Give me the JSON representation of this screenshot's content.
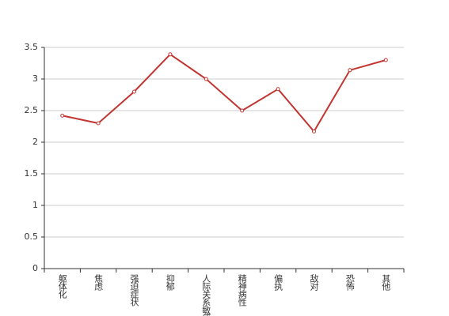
{
  "chart_data": {
    "type": "line",
    "categories": [
      "躯体化",
      "焦虑",
      "强迫症状",
      "抑郁",
      "人际关系敏感",
      "精神病性",
      "偏执",
      "敌对",
      "恐怖",
      "其他"
    ],
    "series": [
      {
        "color": "#c23531",
        "values": [
          2.42,
          2.3,
          2.8,
          3.39,
          3.0,
          2.5,
          2.84,
          2.17,
          3.14,
          3.3
        ]
      }
    ],
    "ylim": [
      0,
      3.5
    ],
    "yticks": [
      0,
      0.5,
      1,
      1.5,
      2,
      2.5,
      3,
      3.5
    ],
    "grid": true
  }
}
